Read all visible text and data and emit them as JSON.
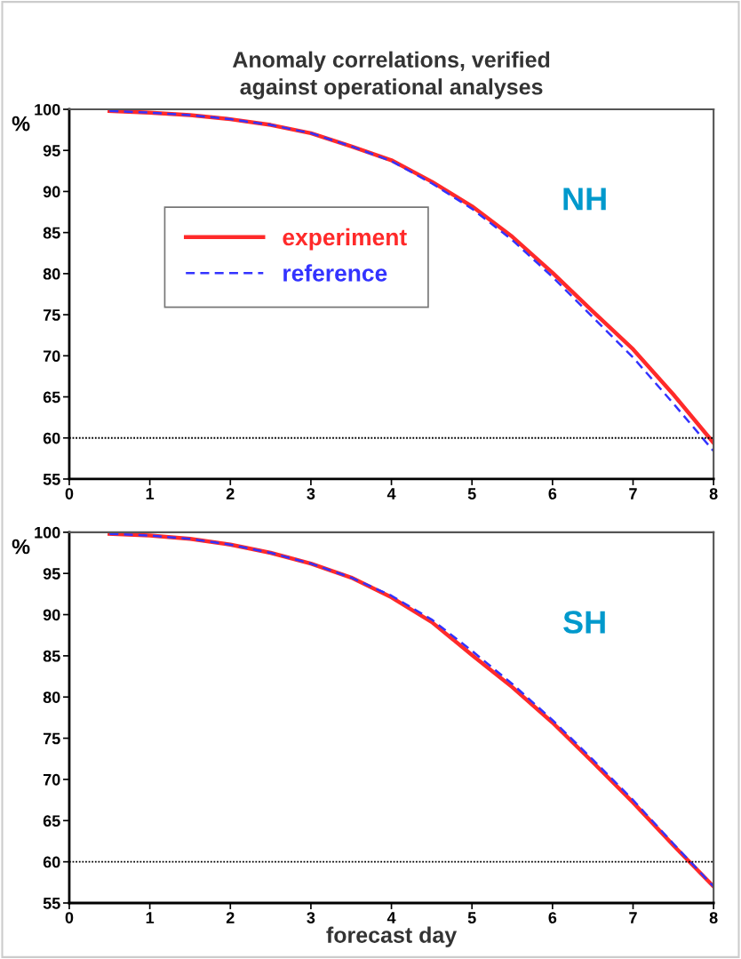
{
  "chart_data": [
    {
      "type": "line",
      "title": "Anomaly correlations, verified\nagainst operational analyses",
      "ylabel": "%",
      "x": [
        0.5,
        1,
        1.5,
        2,
        2.5,
        3,
        3.5,
        4,
        4.5,
        5,
        5.5,
        6,
        6.5,
        7,
        7.5,
        8
      ],
      "series": [
        {
          "name": "experiment",
          "color": "#ff2a2a",
          "line_style": "solid",
          "values": [
            99.8,
            99.6,
            99.3,
            98.8,
            98.1,
            97.1,
            95.5,
            93.8,
            91.2,
            88.2,
            84.5,
            80.1,
            75.4,
            70.8,
            65.3,
            59.4
          ]
        },
        {
          "name": "reference",
          "color": "#3333ff",
          "line_style": "dashed",
          "values": [
            99.8,
            99.6,
            99.3,
            98.8,
            98.1,
            97.1,
            95.5,
            93.7,
            91.0,
            87.9,
            84.1,
            79.6,
            74.7,
            69.8,
            64.2,
            58.4
          ]
        }
      ],
      "annotations": [
        "NH"
      ],
      "xlim": [
        0,
        8
      ],
      "xticks": [
        0,
        1,
        2,
        3,
        4,
        5,
        6,
        7,
        8
      ],
      "ylim": [
        55,
        100
      ],
      "yticks": [
        55,
        60,
        65,
        70,
        75,
        80,
        85,
        90,
        95,
        100
      ],
      "ref_lines": [
        {
          "axis": "y",
          "value": 60,
          "color": "#000000",
          "line_style": "dotted"
        }
      ],
      "legend": "center left",
      "grid": false
    },
    {
      "type": "line",
      "ylabel": "%",
      "xlabel": "forecast day",
      "x": [
        0.5,
        1,
        1.5,
        2,
        2.5,
        3,
        3.5,
        4,
        4.5,
        5,
        5.5,
        6,
        6.5,
        7,
        7.5,
        8
      ],
      "series": [
        {
          "color": "#ff2a2a",
          "line_style": "solid",
          "values": [
            99.8,
            99.6,
            99.2,
            98.5,
            97.5,
            96.2,
            94.5,
            92.1,
            89.1,
            85.1,
            81.2,
            76.9,
            72.1,
            67.2,
            62.0,
            57.0
          ]
        },
        {
          "color": "#3333ff",
          "line_style": "dashed",
          "values": [
            99.8,
            99.6,
            99.2,
            98.5,
            97.5,
            96.2,
            94.5,
            92.3,
            89.4,
            85.6,
            81.6,
            77.2,
            72.4,
            67.5,
            62.2,
            57.0
          ]
        }
      ],
      "annotations": [
        "SH"
      ],
      "xlim": [
        0,
        8
      ],
      "xticks": [
        0,
        1,
        2,
        3,
        4,
        5,
        6,
        7,
        8
      ],
      "ylim": [
        55,
        100
      ],
      "yticks": [
        55,
        60,
        65,
        70,
        75,
        80,
        85,
        90,
        95,
        100
      ],
      "ref_lines": [
        {
          "axis": "y",
          "value": 60,
          "color": "#000000",
          "line_style": "dotted"
        }
      ],
      "grid": false
    }
  ]
}
